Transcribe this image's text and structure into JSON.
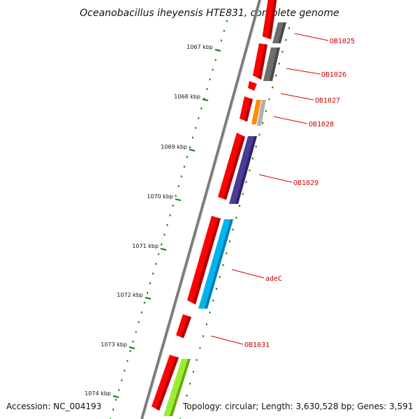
{
  "title": "Oceanobacillus iheyensis HTE831, complete genome",
  "footer": {
    "accession": "Accession: NC_004193",
    "summary": "Topology: circular; Length: 3,630,528 bp; Genes: 3,591"
  },
  "colors": {
    "backbone": "#808080",
    "forward_cds": "#ff0000",
    "gene_label": "#cc0000",
    "ticks": "#1a7a1a",
    "callout": "#dd0000"
  },
  "ruler_labels": [
    "1067 kbp",
    "1068 kbp",
    "1069 kbp",
    "1070 kbp",
    "1071 kbp",
    "1072 kbp",
    "1073 kbp",
    "1074 kbp"
  ],
  "gene_labels": [
    "OB1025",
    "OB1026",
    "OB1027",
    "OB1028",
    "OB1029",
    "adeC",
    "OB1031"
  ],
  "feature_colors": {
    "OB1025": "#6e6e6e",
    "OB1026": "#6e6e6e",
    "OB1028a": "#ff8c00",
    "OB1028b": "#b0b0b0",
    "OB1029": "#4b3c96",
    "adeC": "#00b4f0",
    "last": "#99ee33"
  }
}
